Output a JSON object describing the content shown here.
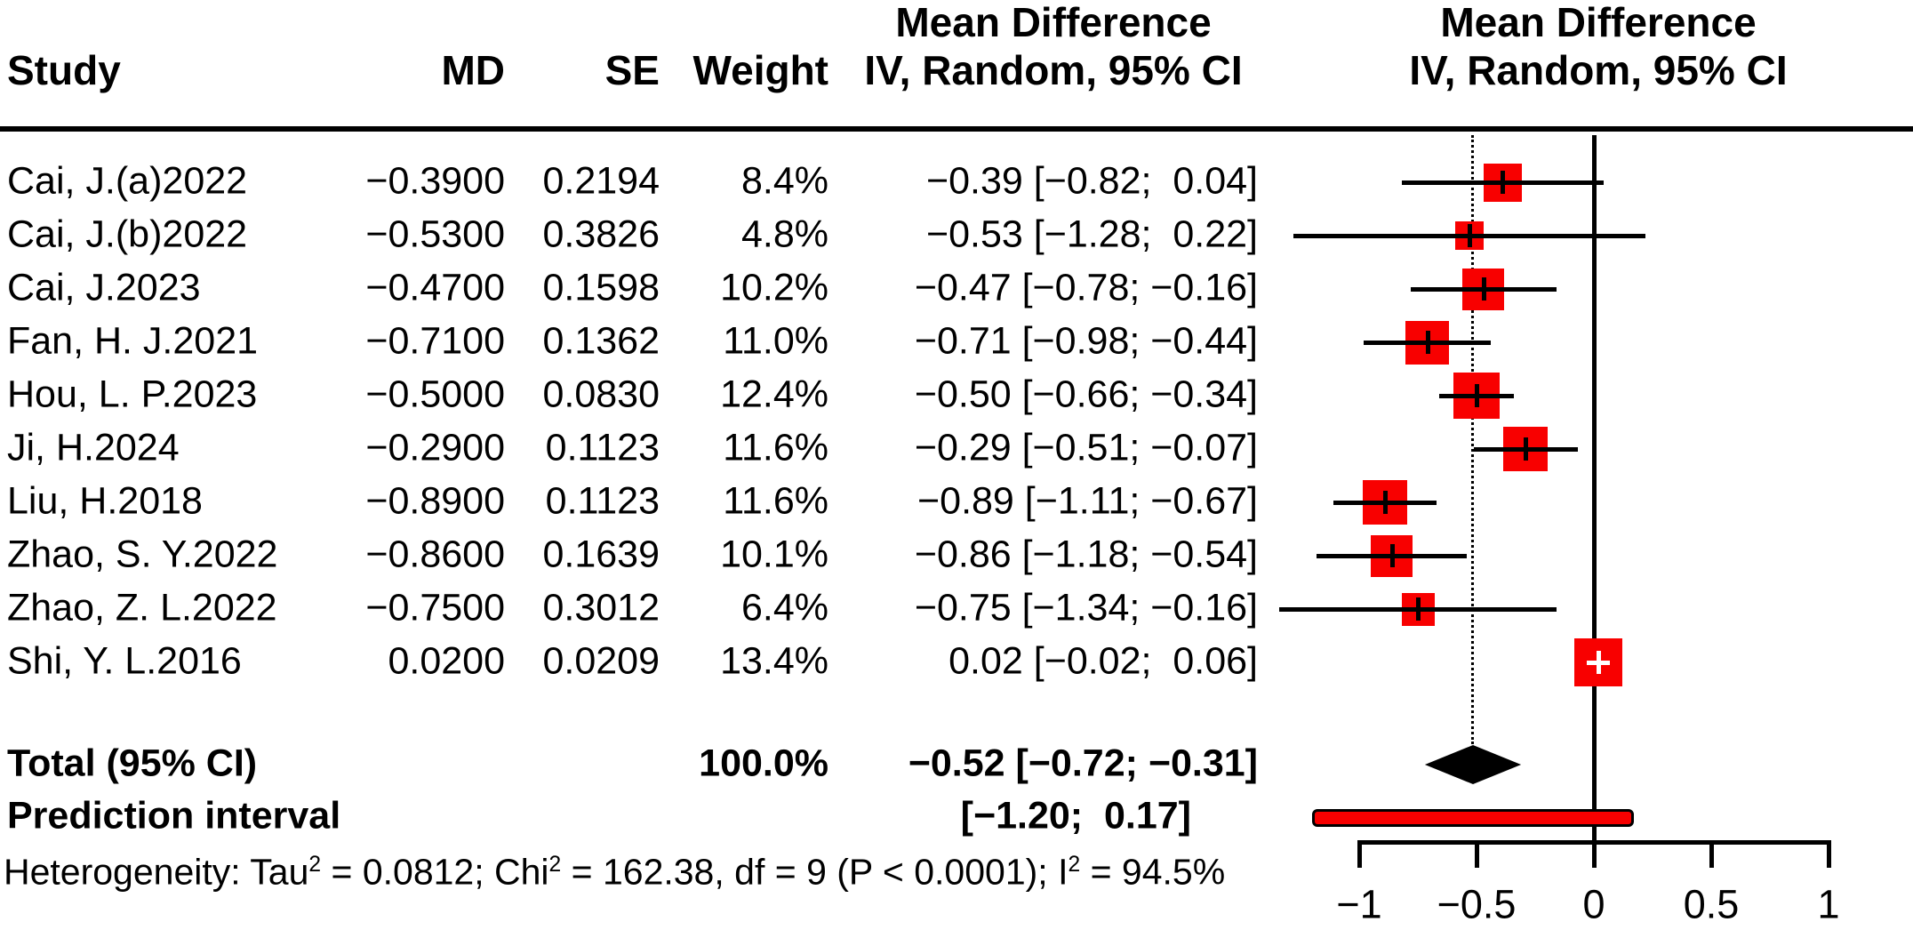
{
  "plot_title_columns": {
    "study_header": "Study",
    "md_header": "MD",
    "se_header": "SE",
    "weight_header": "Weight",
    "effect_header_line1_left": "Mean Difference",
    "effect_header_line2_left": "IV, Random, 95% CI",
    "effect_header_line1_right": "Mean Difference",
    "effect_header_line2_right": "IV, Random, 95% CI"
  },
  "rows": [
    {
      "study": "Cai, J.(a)2022",
      "md": "−0.3900",
      "se": "0.2194",
      "weight": "8.4%",
      "ci_text": "−0.39 [−0.82;  0.04]",
      "est": -0.39,
      "lo": -0.82,
      "hi": 0.04,
      "weight_val": 8.4
    },
    {
      "study": "Cai, J.(b)2022",
      "md": "−0.5300",
      "se": "0.3826",
      "weight": "4.8%",
      "ci_text": "−0.53 [−1.28;  0.22]",
      "est": -0.53,
      "lo": -1.28,
      "hi": 0.22,
      "weight_val": 4.8
    },
    {
      "study": "Cai, J.2023",
      "md": "−0.4700",
      "se": "0.1598",
      "weight": "10.2%",
      "ci_text": "−0.47 [−0.78; −0.16]",
      "est": -0.47,
      "lo": -0.78,
      "hi": -0.16,
      "weight_val": 10.2
    },
    {
      "study": "Fan, H. J.2021",
      "md": "−0.7100",
      "se": "0.1362",
      "weight": "11.0%",
      "ci_text": "−0.71 [−0.98; −0.44]",
      "est": -0.71,
      "lo": -0.98,
      "hi": -0.44,
      "weight_val": 11.0
    },
    {
      "study": "Hou, L. P.2023",
      "md": "−0.5000",
      "se": "0.0830",
      "weight": "12.4%",
      "ci_text": "−0.50 [−0.66; −0.34]",
      "est": -0.5,
      "lo": -0.66,
      "hi": -0.34,
      "weight_val": 12.4
    },
    {
      "study": "Ji, H.2024",
      "md": "−0.2900",
      "se": "0.1123",
      "weight": "11.6%",
      "ci_text": "−0.29 [−0.51; −0.07]",
      "est": -0.29,
      "lo": -0.51,
      "hi": -0.07,
      "weight_val": 11.6
    },
    {
      "study": "Liu, H.2018",
      "md": "−0.8900",
      "se": "0.1123",
      "weight": "11.6%",
      "ci_text": "−0.89 [−1.11; −0.67]",
      "est": -0.89,
      "lo": -1.11,
      "hi": -0.67,
      "weight_val": 11.6
    },
    {
      "study": "Zhao, S. Y.2022",
      "md": "−0.8600",
      "se": "0.1639",
      "weight": "10.1%",
      "ci_text": "−0.86 [−1.18; −0.54]",
      "est": -0.86,
      "lo": -1.18,
      "hi": -0.54,
      "weight_val": 10.1
    },
    {
      "study": "Zhao, Z. L.2022",
      "md": "−0.7500",
      "se": "0.3012",
      "weight": "6.4%",
      "ci_text": "−0.75 [−1.34; −0.16]",
      "est": -0.75,
      "lo": -1.34,
      "hi": -0.16,
      "weight_val": 6.4
    },
    {
      "study": "Shi, Y. L.2016",
      "md": "0.0200",
      "se": "0.0209",
      "weight": "13.4%",
      "ci_text": "0.02 [−0.02;  0.06]",
      "est": 0.02,
      "lo": -0.02,
      "hi": 0.06,
      "weight_val": 13.4
    }
  ],
  "total": {
    "label": "Total (95% CI)",
    "weight": "100.0%",
    "ci_text": "−0.52 [−0.72; −0.31]",
    "est": -0.52,
    "lo": -0.72,
    "hi": -0.31
  },
  "prediction": {
    "label": "Prediction interval",
    "ci_text": "[−1.20;  0.17]",
    "lo": -1.2,
    "hi": 0.17
  },
  "heterogeneity": {
    "parts": [
      {
        "t": "Heterogeneity: Tau"
      },
      {
        "sup": "2"
      },
      {
        "t": " = 0.0812; Chi"
      },
      {
        "sup": "2"
      },
      {
        "t": " = 162.38, df = 9 (P < 0.0001); I"
      },
      {
        "sup": "2"
      },
      {
        "t": " = 94.5%"
      }
    ]
  },
  "axis": {
    "ticks": [
      -1,
      -0.5,
      0,
      0.5,
      1
    ],
    "tick_labels": [
      "−1",
      "−0.5",
      "0",
      "0.5",
      "1"
    ]
  },
  "colors": {
    "square_fill": "#f80000",
    "prediction_fill": "#f80000",
    "line": "#000000",
    "diamond": "#000000",
    "background": "#ffffff"
  },
  "chart_data": {
    "type": "forest",
    "title": "",
    "effect_measure": "Mean Difference (IV, Random, 95% CI)",
    "studies": [
      "Cai, J.(a)2022",
      "Cai, J.(b)2022",
      "Cai, J.2023",
      "Fan, H. J.2021",
      "Hou, L. P.2023",
      "Ji, H.2024",
      "Liu, H.2018",
      "Zhao, S. Y.2022",
      "Zhao, Z. L.2022",
      "Shi, Y. L.2016"
    ],
    "md": [
      -0.39,
      -0.53,
      -0.47,
      -0.71,
      -0.5,
      -0.29,
      -0.89,
      -0.86,
      -0.75,
      0.02
    ],
    "se": [
      0.2194,
      0.3826,
      0.1598,
      0.1362,
      0.083,
      0.1123,
      0.1123,
      0.1639,
      0.3012,
      0.0209
    ],
    "ci_low": [
      -0.82,
      -1.28,
      -0.78,
      -0.98,
      -0.66,
      -0.51,
      -1.11,
      -1.18,
      -1.34,
      -0.02
    ],
    "ci_high": [
      0.04,
      0.22,
      -0.16,
      -0.44,
      -0.34,
      -0.07,
      -0.67,
      -0.54,
      -0.16,
      0.06
    ],
    "weights_pct": [
      8.4,
      4.8,
      10.2,
      11.0,
      12.4,
      11.6,
      11.6,
      10.1,
      6.4,
      13.4
    ],
    "total": {
      "md": -0.52,
      "ci_low": -0.72,
      "ci_high": -0.31,
      "weight_pct": 100.0
    },
    "prediction_interval": {
      "ci_low": -1.2,
      "ci_high": 0.17
    },
    "heterogeneity": {
      "tau2": 0.0812,
      "chi2": 162.38,
      "df": 9,
      "p": "< 0.0001",
      "i2_pct": 94.5
    },
    "xlim": [
      -1,
      1
    ],
    "x_ticks": [
      -1,
      -0.5,
      0,
      0.5,
      1
    ],
    "reference_line": 0,
    "overall_effect_line": -0.52
  }
}
